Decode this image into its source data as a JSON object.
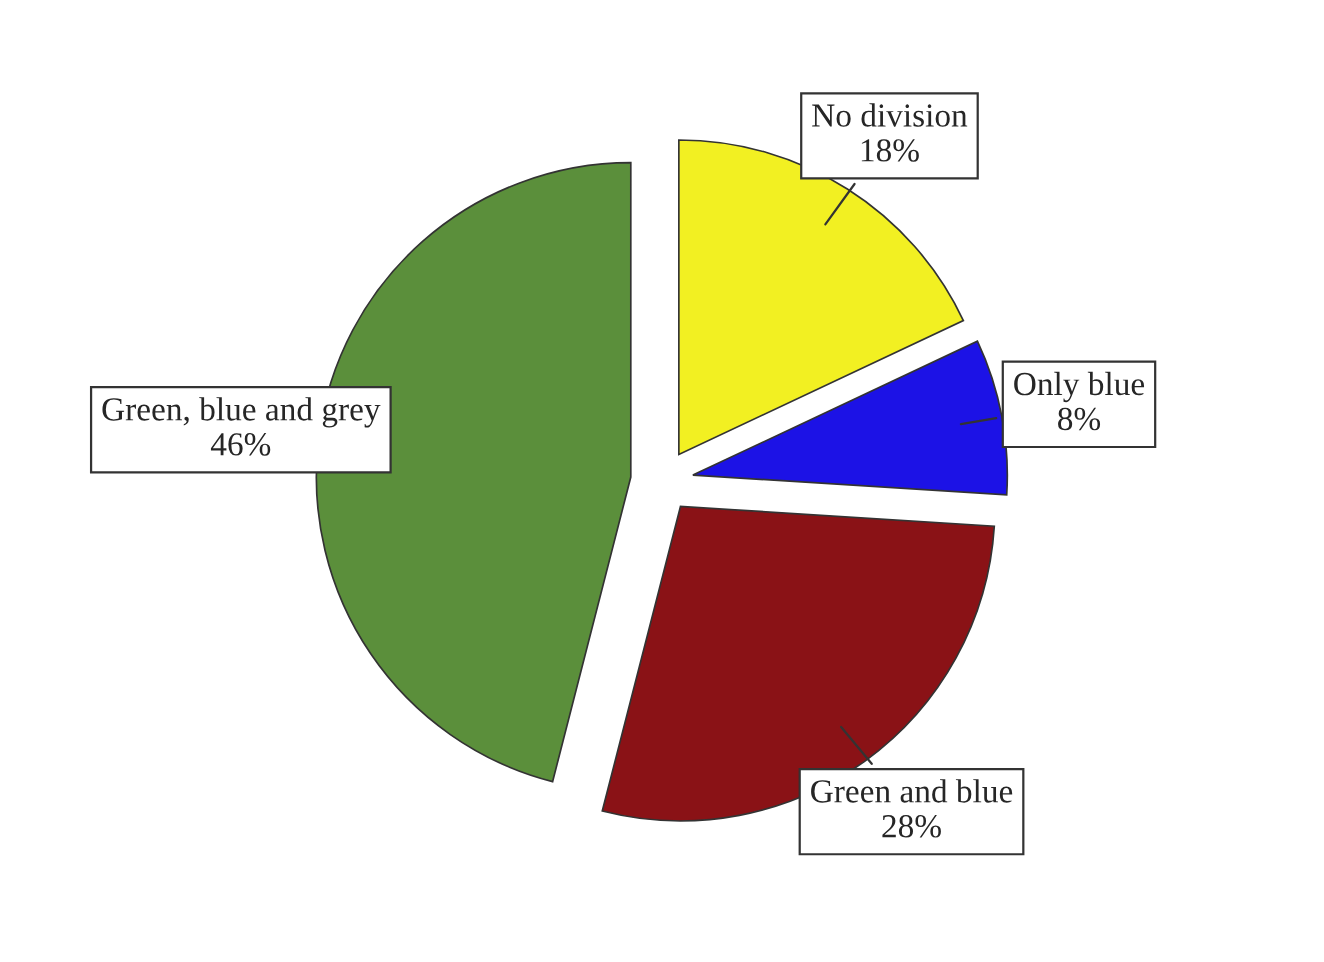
{
  "chart_data": {
    "type": "pie",
    "categories": [
      "No division",
      "Only blue",
      "Green and blue",
      "Green, blue and grey"
    ],
    "values": [
      18,
      8,
      28,
      46
    ],
    "colors": [
      "#f2f022",
      "#1c12e6",
      "#8a1216",
      "#5b8f3b"
    ],
    "value_labels": [
      "18%",
      "8%",
      "28%",
      "46%"
    ]
  }
}
